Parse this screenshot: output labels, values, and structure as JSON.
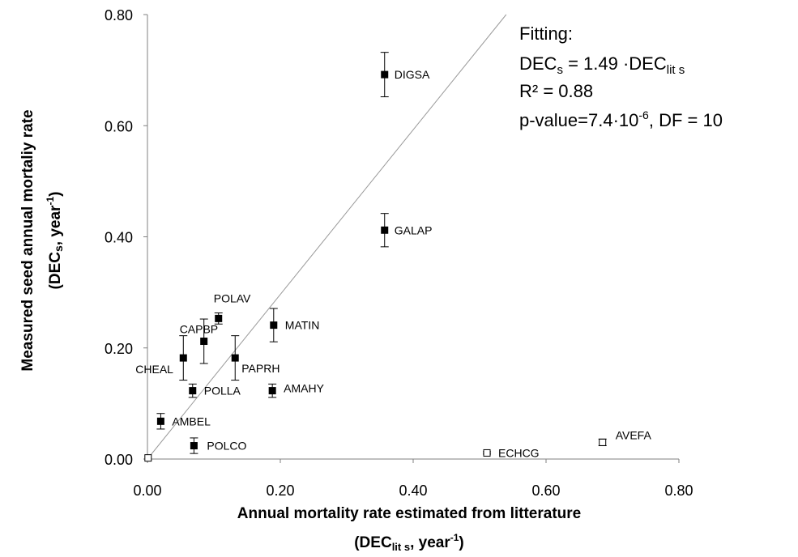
{
  "chart_data": {
    "type": "scatter",
    "xlabel": {
      "line1": "Annual mortality rate estimated from litterature",
      "line2_pre": "(DEC",
      "line2_sub": "lit s",
      "line2_mid": ", year",
      "line2_sup": "-1",
      "line2_post": ")"
    },
    "ylabel": {
      "line1": "Measured seed annual mortaliy rate",
      "line2_pre": "(DEC",
      "line2_sub": "s",
      "line2_mid": ", year",
      "line2_sup": "-1",
      "line2_post": ")"
    },
    "xlim": [
      0,
      0.8
    ],
    "ylim": [
      0,
      0.8
    ],
    "xticks": [
      "0.00",
      "0.20",
      "0.40",
      "0.60",
      "0.80"
    ],
    "yticks": [
      "0.00",
      "0.20",
      "0.40",
      "0.60",
      "0.80"
    ],
    "grid": false,
    "points": [
      {
        "label": "DIGSA",
        "x": 0.357,
        "y": 0.692,
        "err": 0.04,
        "hollow": false
      },
      {
        "label": "GALAP",
        "x": 0.357,
        "y": 0.412,
        "err": 0.03,
        "hollow": false
      },
      {
        "label": "POLAV",
        "x": 0.107,
        "y": 0.253,
        "err": 0.01,
        "hollow": false
      },
      {
        "label": "MATIN",
        "x": 0.19,
        "y": 0.241,
        "err": 0.03,
        "hollow": false
      },
      {
        "label": "CAPBP",
        "x": 0.085,
        "y": 0.212,
        "err": 0.04,
        "hollow": false
      },
      {
        "label": "CHEAL",
        "x": 0.054,
        "y": 0.182,
        "err": 0.04,
        "hollow": false
      },
      {
        "label": "PAPRH",
        "x": 0.132,
        "y": 0.182,
        "err": 0.04,
        "hollow": false
      },
      {
        "label": "POLLA",
        "x": 0.068,
        "y": 0.123,
        "err": 0.012,
        "hollow": false
      },
      {
        "label": "AMAHY",
        "x": 0.188,
        "y": 0.123,
        "err": 0.012,
        "hollow": false
      },
      {
        "label": "AMBEL",
        "x": 0.02,
        "y": 0.068,
        "err": 0.014,
        "hollow": false
      },
      {
        "label": "POLCO",
        "x": 0.07,
        "y": 0.024,
        "err": 0.014,
        "hollow": false
      },
      {
        "label": "ECHCG",
        "x": 0.511,
        "y": 0.011,
        "err": 0.002,
        "hollow": true
      },
      {
        "label": "AVEFA",
        "x": 0.685,
        "y": 0.03,
        "err": 0.006,
        "hollow": true
      },
      {
        "label": "",
        "x": 0.001,
        "y": 0.002,
        "err": 0,
        "hollow": true
      }
    ],
    "fit_line": {
      "slope": 1.49,
      "x": [
        0,
        0.54
      ],
      "y": [
        0,
        0.8
      ]
    },
    "annotation": {
      "title": "Fitting:",
      "eq_pre": "DEC",
      "eq_sub1": "s",
      "eq_mid": " = 1.49 ·DEC",
      "eq_sub2": "lit s",
      "r2": "R² = 0.88",
      "p_pre": "p-value=7.4·10",
      "p_sup": "-6",
      "p_post": ", DF = 10"
    }
  }
}
